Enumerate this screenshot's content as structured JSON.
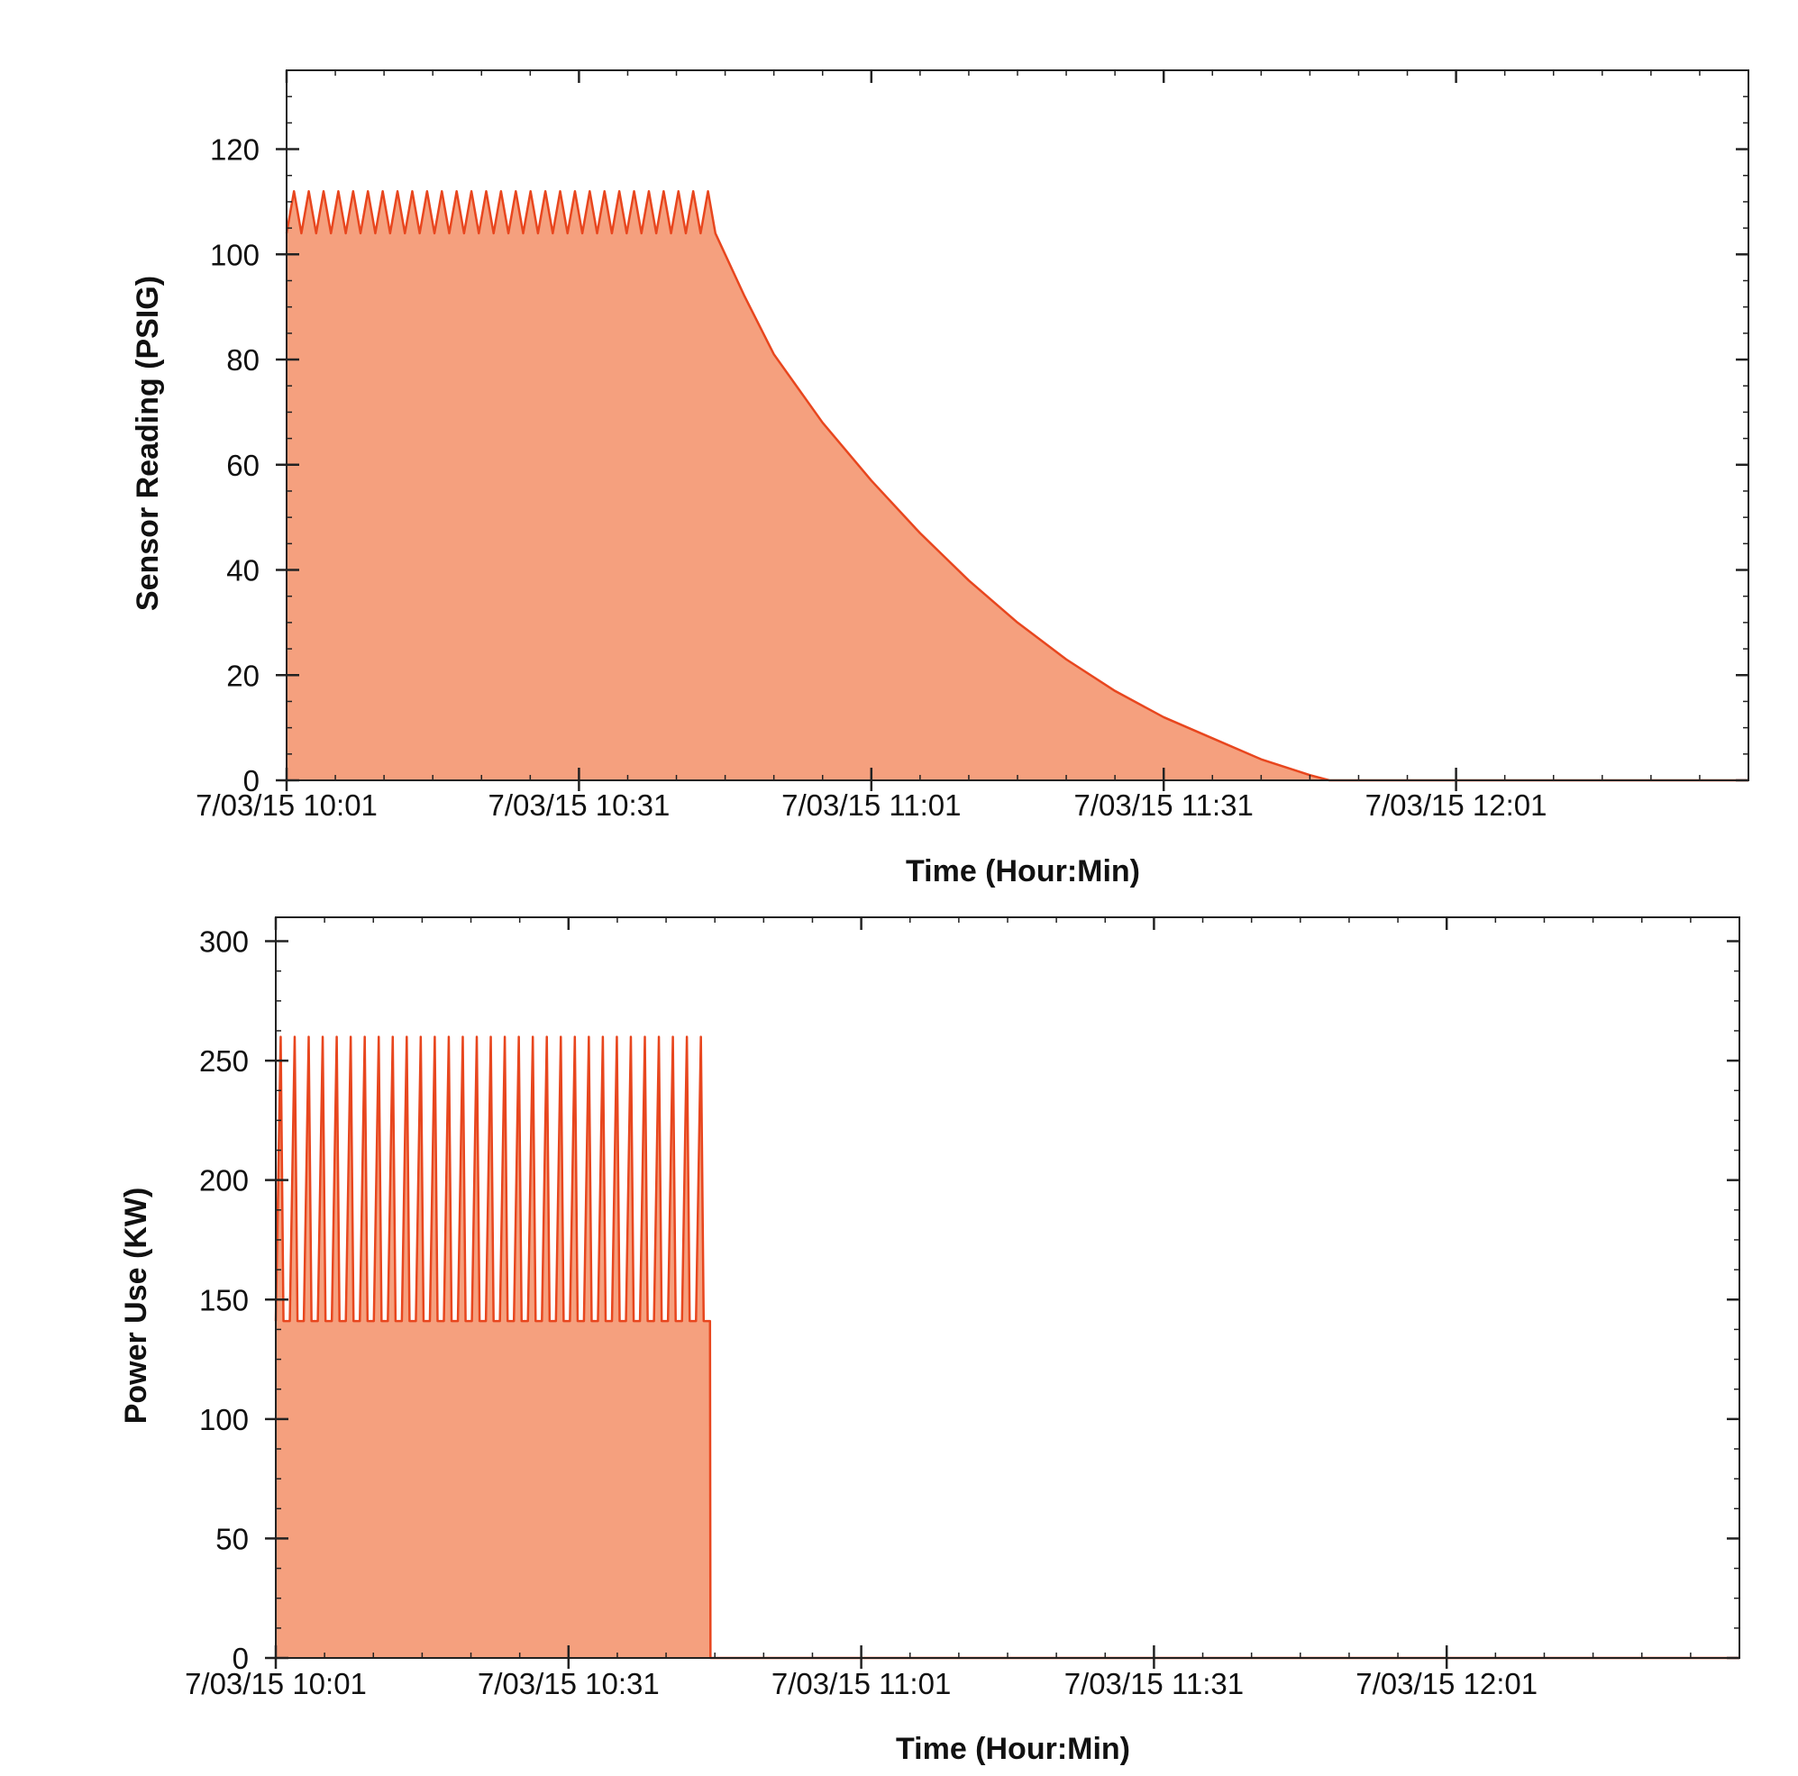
{
  "colors": {
    "fill": "#f5a07e",
    "line": "#e8461e",
    "axis": "#222222",
    "background": "#ffffff"
  },
  "chart_data": [
    {
      "type": "area",
      "series_name": "Sensor Reading",
      "xlabel": "Time (Hour:Min)",
      "ylabel": "Sensor Reading (PSIG)",
      "xlim_minutes": [
        0,
        150
      ],
      "ylim": [
        0,
        135
      ],
      "yticks": [
        0,
        20,
        40,
        60,
        80,
        100,
        120
      ],
      "xtick_labels": [
        "7/03/15 10:01",
        "7/03/15 10:31",
        "7/03/15 11:01",
        "7/03/15 11:31",
        "7/03/15 12:01"
      ],
      "xtick_minutes": [
        0,
        30,
        60,
        90,
        120
      ],
      "cycling": {
        "start_min": 0,
        "end_min": 44,
        "cycles": 29,
        "low": 104,
        "high": 112
      },
      "decay": [
        [
          44,
          104
        ],
        [
          47,
          92
        ],
        [
          50,
          81
        ],
        [
          55,
          68
        ],
        [
          60,
          57
        ],
        [
          65,
          47
        ],
        [
          70,
          38
        ],
        [
          75,
          30
        ],
        [
          80,
          23
        ],
        [
          85,
          17
        ],
        [
          90,
          12
        ],
        [
          95,
          8
        ],
        [
          100,
          4
        ],
        [
          105,
          1
        ],
        [
          107,
          0
        ],
        [
          150,
          0
        ]
      ]
    },
    {
      "type": "area",
      "series_name": "Power Use",
      "xlabel": "Time (Hour:Min)",
      "ylabel": "Power Use (KW)",
      "xlim_minutes": [
        0,
        150
      ],
      "ylim": [
        0,
        310
      ],
      "yticks": [
        0,
        50,
        100,
        150,
        200,
        250,
        300
      ],
      "xtick_labels": [
        "7/03/15 10:01",
        "7/03/15 10:31",
        "7/03/15 11:01",
        "7/03/15 11:31",
        "7/03/15 12:01"
      ],
      "xtick_minutes": [
        0,
        30,
        60,
        90,
        120
      ],
      "cycling": {
        "start_min": 0,
        "end_min": 44.5,
        "cycles": 31,
        "low": 141,
        "high": 260
      },
      "after": [
        [
          44.6,
          0
        ],
        [
          150,
          0
        ]
      ]
    }
  ]
}
